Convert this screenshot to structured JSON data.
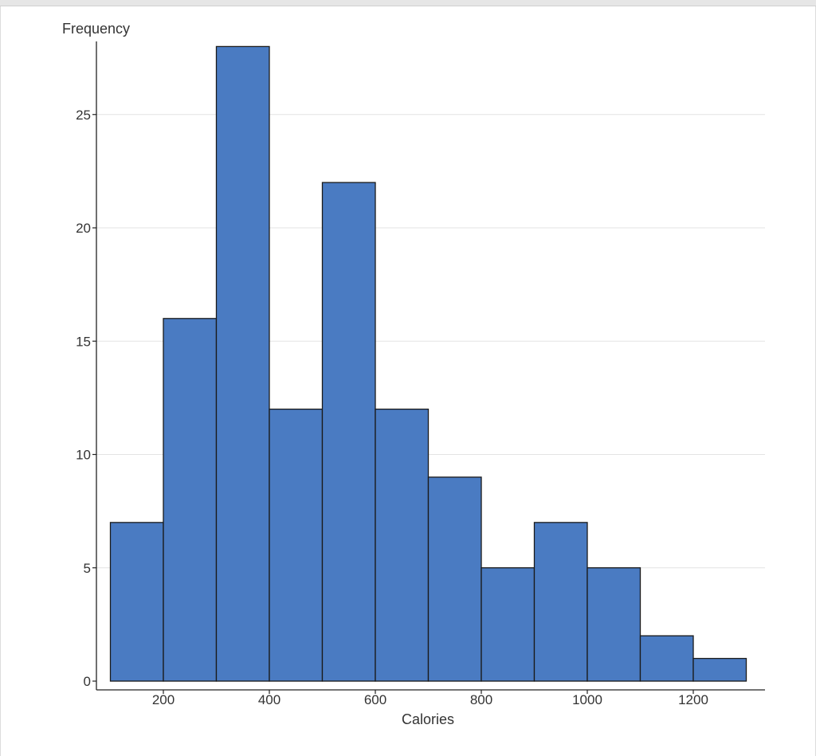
{
  "chart_data": {
    "type": "bar",
    "xlabel": "Calories",
    "ylabel": "Frequency",
    "bin_width": 100,
    "bins": [
      {
        "start": 100,
        "end": 200,
        "count": 7
      },
      {
        "start": 200,
        "end": 300,
        "count": 16
      },
      {
        "start": 300,
        "end": 400,
        "count": 28
      },
      {
        "start": 400,
        "end": 500,
        "count": 12
      },
      {
        "start": 500,
        "end": 600,
        "count": 22
      },
      {
        "start": 600,
        "end": 700,
        "count": 12
      },
      {
        "start": 700,
        "end": 800,
        "count": 9
      },
      {
        "start": 800,
        "end": 900,
        "count": 5
      },
      {
        "start": 900,
        "end": 1000,
        "count": 7
      },
      {
        "start": 1000,
        "end": 1100,
        "count": 5
      },
      {
        "start": 1100,
        "end": 1200,
        "count": 2
      },
      {
        "start": 1200,
        "end": 1300,
        "count": 1
      }
    ],
    "x_ticks": [
      "200",
      "400",
      "600",
      "800",
      "1000",
      "1200"
    ],
    "y_ticks": [
      "0",
      "5",
      "10",
      "15",
      "20",
      "25"
    ],
    "xlim": [
      75,
      1335
    ],
    "ylim": [
      0,
      28
    ],
    "grid": "horizontal",
    "bar_color": "#4a7bc2",
    "edge_color": "#1a1a1a"
  }
}
